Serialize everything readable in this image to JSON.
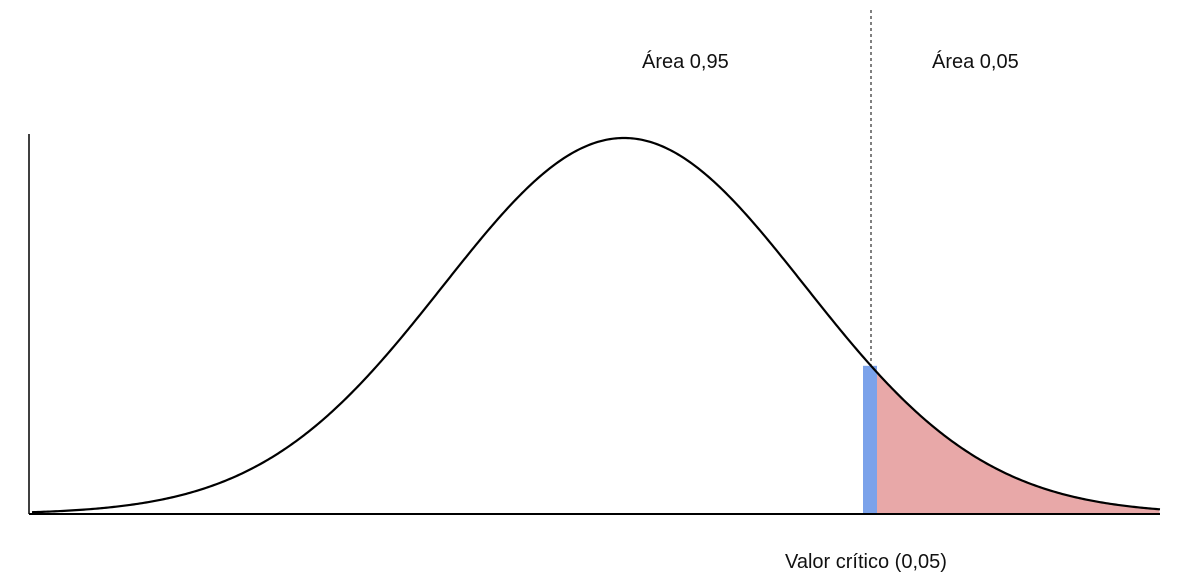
{
  "labels": {
    "area_main": "Área 0,95",
    "area_tail": "Área 0,05",
    "critical_value": "Valor crítico (0,05)"
  },
  "colors": {
    "curve": "#000000",
    "tail_fill": "#e8a8a8",
    "critical_band": "#7ba2ea",
    "critical_line": "#000000"
  }
}
